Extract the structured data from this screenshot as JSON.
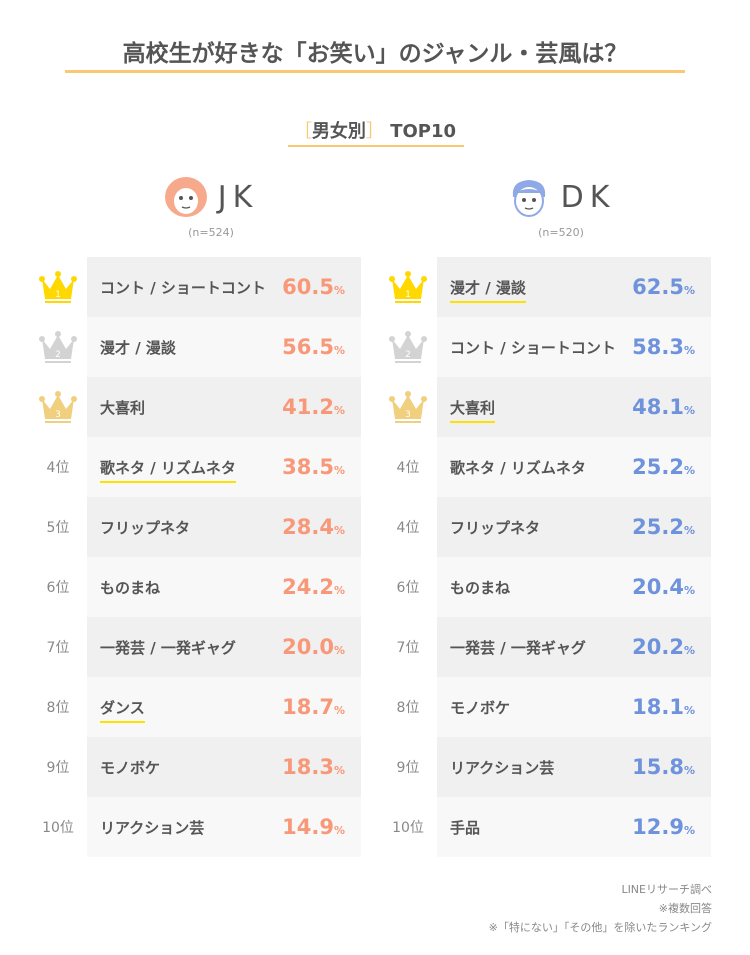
{
  "title": "高校生が好きな「お笑い」のジャンル・芸風は？",
  "subtitle": {
    "open": "［",
    "label": "男女別",
    "close": "］",
    "top": "TOP10"
  },
  "colors": {
    "accent": "#f9c873",
    "jk": "#f89878",
    "dk": "#6e93dc",
    "gold": "#ffd800",
    "silver": "#d3d3d3",
    "bronze": "#f0cf7e",
    "highlight": "#ffe000"
  },
  "chart_data": {
    "type": "table",
    "title": "高校生が好きな「お笑い」のジャンル・芸風は？",
    "unit": "%",
    "groups": [
      {
        "name": "JK",
        "n": "(n=524)",
        "rows": [
          {
            "rank": "1",
            "item": "コント / ショートコント",
            "value": 60.5,
            "value_text": "60.5",
            "highlight": false
          },
          {
            "rank": "2",
            "item": "漫才 / 漫談",
            "value": 56.5,
            "value_text": "56.5",
            "highlight": false
          },
          {
            "rank": "3",
            "item": "大喜利",
            "value": 41.2,
            "value_text": "41.2",
            "highlight": false
          },
          {
            "rank": "4位",
            "item": "歌ネタ / リズムネタ",
            "value": 38.5,
            "value_text": "38.5",
            "highlight": true
          },
          {
            "rank": "5位",
            "item": "フリップネタ",
            "value": 28.4,
            "value_text": "28.4",
            "highlight": false
          },
          {
            "rank": "6位",
            "item": "ものまね",
            "value": 24.2,
            "value_text": "24.2",
            "highlight": false
          },
          {
            "rank": "7位",
            "item": "一発芸 / 一発ギャグ",
            "value": 20.0,
            "value_text": "20.0",
            "highlight": false
          },
          {
            "rank": "8位",
            "item": "ダンス",
            "value": 18.7,
            "value_text": "18.7",
            "highlight": true
          },
          {
            "rank": "9位",
            "item": "モノボケ",
            "value": 18.3,
            "value_text": "18.3",
            "highlight": false
          },
          {
            "rank": "10位",
            "item": "リアクション芸",
            "value": 14.9,
            "value_text": "14.9",
            "highlight": false
          }
        ]
      },
      {
        "name": "DK",
        "n": "(n=520)",
        "rows": [
          {
            "rank": "1",
            "item": "漫才 / 漫談",
            "value": 62.5,
            "value_text": "62.5",
            "highlight": true
          },
          {
            "rank": "2",
            "item": "コント / ショートコント",
            "value": 58.3,
            "value_text": "58.3",
            "highlight": false
          },
          {
            "rank": "3",
            "item": "大喜利",
            "value": 48.1,
            "value_text": "48.1",
            "highlight": true
          },
          {
            "rank": "4位",
            "item": "歌ネタ / リズムネタ",
            "value": 25.2,
            "value_text": "25.2",
            "highlight": false
          },
          {
            "rank": "4位",
            "item": "フリップネタ",
            "value": 25.2,
            "value_text": "25.2",
            "highlight": false
          },
          {
            "rank": "6位",
            "item": "ものまね",
            "value": 20.4,
            "value_text": "20.4",
            "highlight": false
          },
          {
            "rank": "7位",
            "item": "一発芸 / 一発ギャグ",
            "value": 20.2,
            "value_text": "20.2",
            "highlight": false
          },
          {
            "rank": "8位",
            "item": "モノボケ",
            "value": 18.1,
            "value_text": "18.1",
            "highlight": false
          },
          {
            "rank": "9位",
            "item": "リアクション芸",
            "value": 15.8,
            "value_text": "15.8",
            "highlight": false
          },
          {
            "rank": "10位",
            "item": "手品",
            "value": 12.9,
            "value_text": "12.9",
            "highlight": false
          }
        ]
      }
    ]
  },
  "notes": [
    "LINEリサーチ調べ",
    "※複数回答",
    "※「特にない」「その他」を除いたランキング"
  ]
}
